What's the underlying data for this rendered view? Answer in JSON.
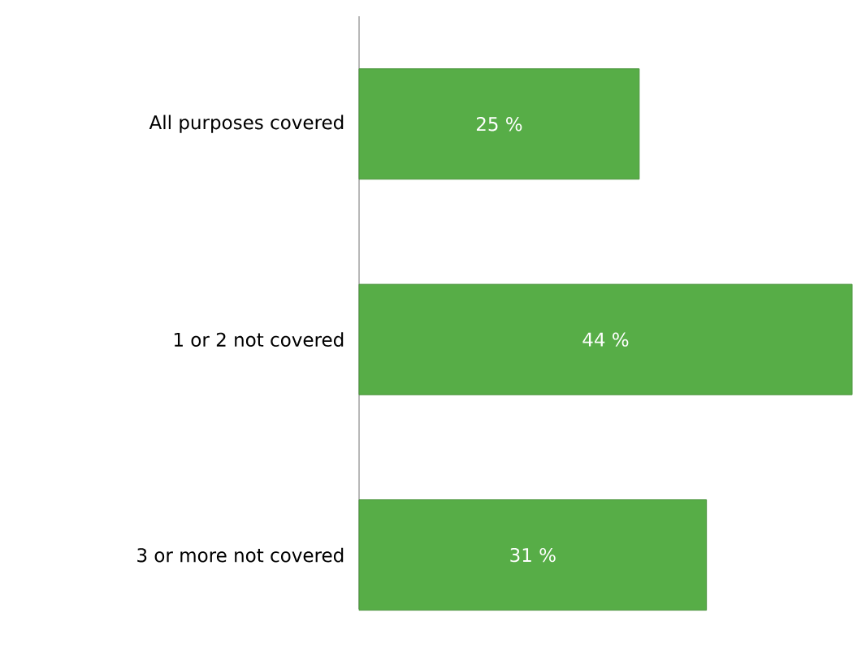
{
  "chart_data": {
    "type": "bar",
    "orientation": "horizontal",
    "categories": [
      "All purposes covered",
      "1 or 2 not covered",
      "3 or more not covered"
    ],
    "values": [
      25,
      44,
      31
    ],
    "color": "#57ad47",
    "value_labels": [
      "25 %",
      "44 %",
      "31 %"
    ]
  }
}
